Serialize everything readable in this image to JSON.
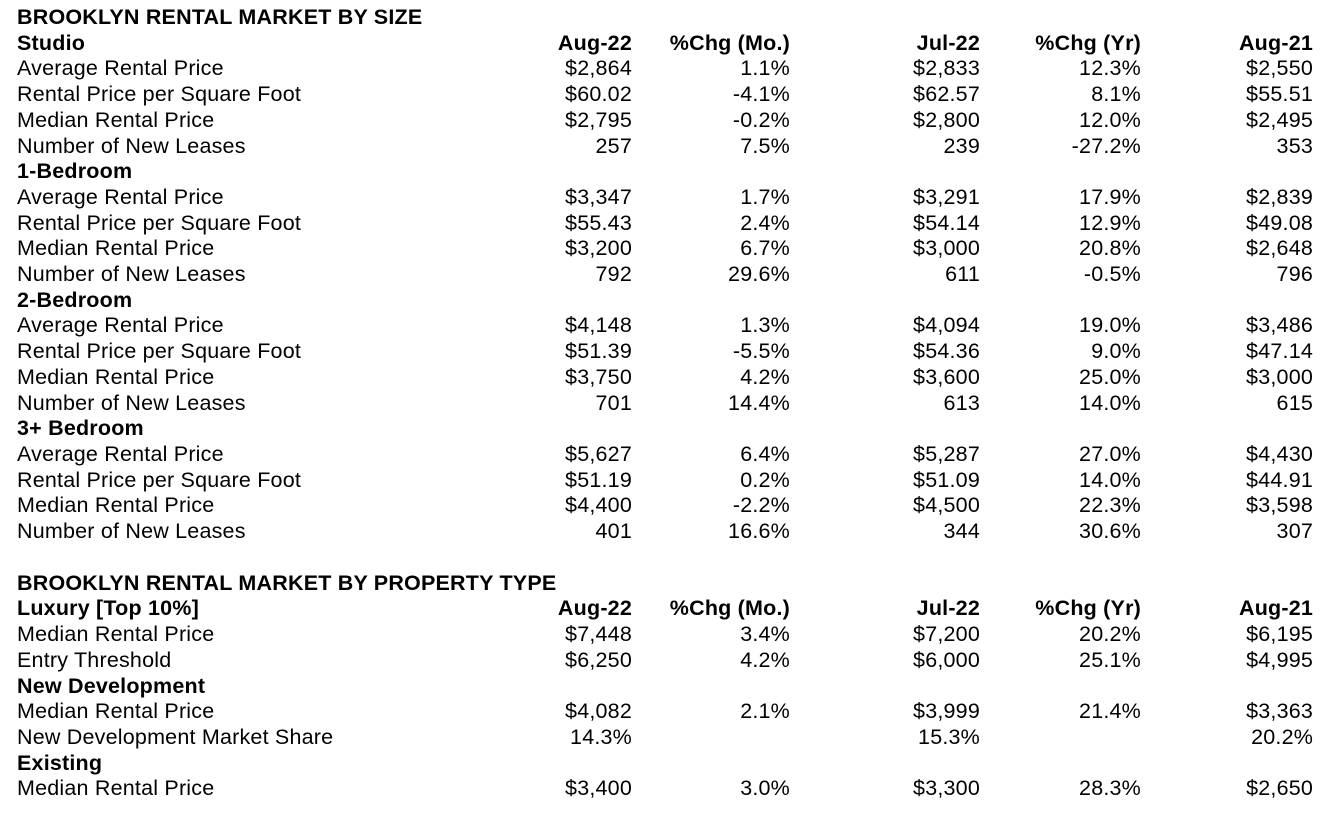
{
  "tables": [
    {
      "id": "by-size",
      "title": "BROOKLYN RENTAL MARKET BY SIZE",
      "columns": [
        "Aug-22",
        "%Chg (Mo.)",
        "Jul-22",
        "%Chg (Yr)",
        "Aug-21"
      ],
      "groups": [
        {
          "name": "Studio",
          "rows": [
            {
              "label": "Average Rental Price",
              "values": [
                "$2,864",
                "1.1%",
                "$2,833",
                "12.3%",
                "$2,550"
              ]
            },
            {
              "label": "Rental Price per Square Foot",
              "values": [
                "$60.02",
                "-4.1%",
                "$62.57",
                "8.1%",
                "$55.51"
              ]
            },
            {
              "label": "Median Rental Price",
              "values": [
                "$2,795",
                "-0.2%",
                "$2,800",
                "12.0%",
                "$2,495"
              ]
            },
            {
              "label": "Number of New Leases",
              "values": [
                "257",
                "7.5%",
                "239",
                "-27.2%",
                "353"
              ]
            }
          ]
        },
        {
          "name": "1-Bedroom",
          "rows": [
            {
              "label": "Average Rental Price",
              "values": [
                "$3,347",
                "1.7%",
                "$3,291",
                "17.9%",
                "$2,839"
              ]
            },
            {
              "label": "Rental Price per Square Foot",
              "values": [
                "$55.43",
                "2.4%",
                "$54.14",
                "12.9%",
                "$49.08"
              ]
            },
            {
              "label": "Median Rental Price",
              "values": [
                "$3,200",
                "6.7%",
                "$3,000",
                "20.8%",
                "$2,648"
              ]
            },
            {
              "label": "Number of New Leases",
              "values": [
                "792",
                "29.6%",
                "611",
                "-0.5%",
                "796"
              ]
            }
          ]
        },
        {
          "name": "2-Bedroom",
          "rows": [
            {
              "label": "Average Rental Price",
              "values": [
                "$4,148",
                "1.3%",
                "$4,094",
                "19.0%",
                "$3,486"
              ]
            },
            {
              "label": "Rental Price per Square Foot",
              "values": [
                "$51.39",
                "-5.5%",
                "$54.36",
                "9.0%",
                "$47.14"
              ]
            },
            {
              "label": "Median Rental Price",
              "values": [
                "$3,750",
                "4.2%",
                "$3,600",
                "25.0%",
                "$3,000"
              ]
            },
            {
              "label": "Number of New Leases",
              "values": [
                "701",
                "14.4%",
                "613",
                "14.0%",
                "615"
              ]
            }
          ]
        },
        {
          "name": "3+ Bedroom",
          "rows": [
            {
              "label": "Average Rental Price",
              "values": [
                "$5,627",
                "6.4%",
                "$5,287",
                "27.0%",
                "$4,430"
              ]
            },
            {
              "label": "Rental Price per Square Foot",
              "values": [
                "$51.19",
                "0.2%",
                "$51.09",
                "14.0%",
                "$44.91"
              ]
            },
            {
              "label": "Median Rental Price",
              "values": [
                "$4,400",
                "-2.2%",
                "$4,500",
                "22.3%",
                "$3,598"
              ]
            },
            {
              "label": "Number of New Leases",
              "values": [
                "401",
                "16.6%",
                "344",
                "30.6%",
                "307"
              ]
            }
          ]
        }
      ]
    },
    {
      "id": "by-property-type",
      "title": "BROOKLYN RENTAL MARKET BY PROPERTY TYPE",
      "columns": [
        "Aug-22",
        "%Chg (Mo.)",
        "Jul-22",
        "%Chg (Yr)",
        "Aug-21"
      ],
      "groups": [
        {
          "name": "Luxury [Top 10%]",
          "rows": [
            {
              "label": "Median Rental Price",
              "values": [
                "$7,448",
                "3.4%",
                "$7,200",
                "20.2%",
                "$6,195"
              ]
            },
            {
              "label": "Entry Threshold",
              "values": [
                "$6,250",
                "4.2%",
                "$6,000",
                "25.1%",
                "$4,995"
              ]
            }
          ]
        },
        {
          "name": "New Development",
          "rows": [
            {
              "label": "Median Rental Price",
              "values": [
                "$4,082",
                "2.1%",
                "$3,999",
                "21.4%",
                "$3,363"
              ]
            },
            {
              "label": "New Development Market Share",
              "values": [
                "14.3%",
                "",
                "15.3%",
                "",
                "20.2%"
              ]
            }
          ]
        },
        {
          "name": "Existing",
          "rows": [
            {
              "label": "Median Rental Price",
              "values": [
                "$3,400",
                "3.0%",
                "$3,300",
                "28.3%",
                "$2,650"
              ]
            }
          ]
        }
      ]
    }
  ],
  "layout": {
    "text_color": "#000000",
    "background_color": "#ffffff"
  }
}
